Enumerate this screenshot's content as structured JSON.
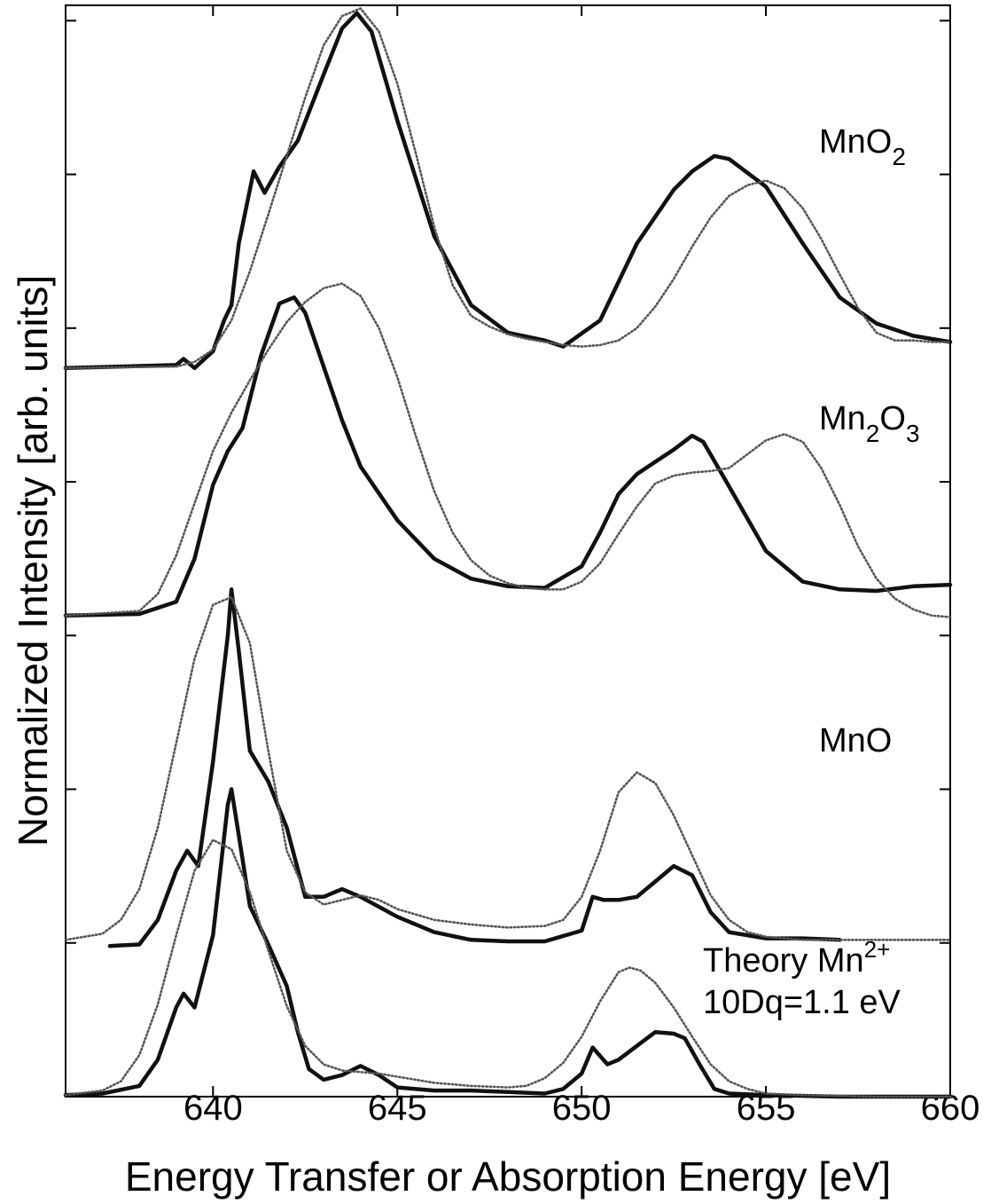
{
  "chart_data": {
    "type": "line",
    "xlabel": "Energy Transfer or Absorption Energy [eV]",
    "ylabel": "Normalized Intensity [arb. units]",
    "xlim": [
      636,
      660
    ],
    "ylim": [
      0,
      7.1
    ],
    "x_ticks": [
      640,
      645,
      650,
      655,
      660
    ],
    "x_tick_labels": [
      "640",
      "645",
      "650",
      "655",
      "660"
    ],
    "y_ticks": [
      1,
      2,
      3,
      4,
      5,
      6,
      7
    ],
    "grid": false,
    "legend": "none",
    "labels": {
      "mno2": {
        "main": "MnO",
        "sub": "2"
      },
      "mn2o3": {
        "main": "Mn",
        "sub1": "2",
        "mid": "O",
        "sub2": "3"
      },
      "mno": {
        "main": "MnO"
      },
      "theory": {
        "line1_prefix": "Theory Mn",
        "line1_sup": "2+",
        "line2": "10Dq=1.1 eV"
      }
    },
    "series": [
      {
        "id": "mno2_solid",
        "style": "solid",
        "x": [
          636,
          639.0,
          639.2,
          639.5,
          640.0,
          640.3,
          640.5,
          640.7,
          641.0,
          641.1,
          641.4,
          641.8,
          642.3,
          643.0,
          643.5,
          643.9,
          644.3,
          645.0,
          646.0,
          647.0,
          648.0,
          649.0,
          649.5,
          650.5,
          651.5,
          652.5,
          653.0,
          653.6,
          654.0,
          655.0,
          656.0,
          657.0,
          658.0,
          659.0,
          660
        ],
        "y": [
          4.74,
          4.76,
          4.8,
          4.74,
          4.85,
          5.05,
          5.15,
          5.55,
          5.9,
          6.02,
          5.88,
          6.05,
          6.22,
          6.65,
          6.95,
          7.05,
          6.93,
          6.35,
          5.6,
          5.15,
          4.97,
          4.92,
          4.88,
          5.05,
          5.55,
          5.9,
          6.02,
          6.12,
          6.1,
          5.92,
          5.55,
          5.2,
          5.03,
          4.95,
          4.91
        ]
      },
      {
        "id": "mno2_dotted",
        "style": "dotted",
        "x": [
          636,
          639.0,
          639.5,
          640.0,
          640.5,
          641.0,
          641.5,
          642.0,
          642.5,
          643.0,
          643.5,
          644.0,
          644.5,
          645.0,
          645.5,
          646.0,
          646.5,
          647.0,
          647.5,
          648.0,
          648.5,
          649.0,
          649.5,
          650.0,
          650.5,
          651.0,
          651.5,
          652.0,
          652.5,
          653.0,
          653.5,
          654.0,
          654.5,
          655.0,
          655.5,
          656.0,
          656.5,
          657.0,
          657.5,
          658.0,
          658.5,
          659.0,
          659.5,
          660
        ],
        "y": [
          4.74,
          4.75,
          4.78,
          4.86,
          5.05,
          5.37,
          5.74,
          6.12,
          6.5,
          6.84,
          7.03,
          7.08,
          6.93,
          6.59,
          6.14,
          5.66,
          5.28,
          5.08,
          5.01,
          4.96,
          4.93,
          4.91,
          4.89,
          4.88,
          4.89,
          4.92,
          5.0,
          5.14,
          5.32,
          5.53,
          5.72,
          5.86,
          5.93,
          5.96,
          5.91,
          5.78,
          5.58,
          5.35,
          5.13,
          4.97,
          4.92,
          4.92,
          4.91,
          4.91
        ]
      },
      {
        "id": "mn2o3_solid",
        "style": "solid",
        "x": [
          636,
          638.0,
          639.0,
          639.5,
          640.0,
          640.4,
          640.8,
          641.3,
          641.8,
          642.2,
          642.5,
          643.0,
          643.5,
          644.0,
          645.0,
          646.0,
          647.0,
          648.0,
          649.0,
          650.0,
          650.5,
          651.0,
          651.5,
          652.0,
          652.5,
          653.0,
          653.3,
          654.0,
          655.0,
          656.0,
          657.0,
          658.0,
          659.0,
          660
        ],
        "y": [
          3.13,
          3.14,
          3.22,
          3.5,
          3.98,
          4.2,
          4.35,
          4.82,
          5.16,
          5.2,
          5.1,
          4.75,
          4.4,
          4.1,
          3.75,
          3.5,
          3.37,
          3.32,
          3.31,
          3.45,
          3.67,
          3.92,
          4.05,
          4.13,
          4.21,
          4.3,
          4.26,
          3.97,
          3.55,
          3.35,
          3.3,
          3.29,
          3.32,
          3.33
        ]
      },
      {
        "id": "mn2o3_dotted",
        "style": "dotted",
        "x": [
          636,
          638.0,
          638.5,
          639.0,
          639.5,
          640.0,
          640.5,
          641.0,
          641.5,
          642.0,
          642.5,
          643.0,
          643.5,
          644.0,
          644.5,
          645.0,
          645.5,
          646.0,
          646.5,
          647.0,
          647.5,
          648.0,
          648.5,
          649.0,
          649.5,
          650.0,
          650.5,
          651.0,
          651.5,
          652.0,
          652.5,
          653.0,
          653.5,
          654.0,
          654.5,
          655.0,
          655.5,
          656.0,
          656.5,
          657.0,
          657.5,
          658.0,
          658.5,
          659.0,
          659.5,
          660
        ],
        "y": [
          3.13,
          3.16,
          3.27,
          3.52,
          3.86,
          4.2,
          4.45,
          4.66,
          4.86,
          5.04,
          5.17,
          5.26,
          5.29,
          5.21,
          5.0,
          4.68,
          4.3,
          3.94,
          3.67,
          3.49,
          3.39,
          3.34,
          3.31,
          3.3,
          3.3,
          3.35,
          3.47,
          3.66,
          3.84,
          3.99,
          4.04,
          4.06,
          4.07,
          4.09,
          4.18,
          4.27,
          4.31,
          4.26,
          4.09,
          3.85,
          3.58,
          3.37,
          3.24,
          3.17,
          3.13,
          3.12
        ]
      },
      {
        "id": "mno_solid",
        "style": "solid",
        "x": [
          637.2,
          638.0,
          638.5,
          639.0,
          639.3,
          639.6,
          640.0,
          640.4,
          640.5,
          640.7,
          641.0,
          641.5,
          642.0,
          642.5,
          643.0,
          643.5,
          644.0,
          645.0,
          646.0,
          647.0,
          648.0,
          649.0,
          650.0,
          650.3,
          650.6,
          651.0,
          651.5,
          652.0,
          652.5,
          653.0,
          653.5,
          654.0,
          655.0,
          656.0,
          657.0
        ],
        "y": [
          0.98,
          0.99,
          1.15,
          1.47,
          1.6,
          1.5,
          2.18,
          3.0,
          3.3,
          2.9,
          2.25,
          2.05,
          1.75,
          1.3,
          1.3,
          1.35,
          1.3,
          1.17,
          1.07,
          1.02,
          1.01,
          1.01,
          1.08,
          1.3,
          1.28,
          1.28,
          1.3,
          1.4,
          1.5,
          1.44,
          1.2,
          1.07,
          1.03,
          1.03,
          1.02
        ]
      },
      {
        "id": "mno_dotted",
        "style": "dotted",
        "x": [
          636,
          637.0,
          637.5,
          638.0,
          638.5,
          639.0,
          639.5,
          640.0,
          640.5,
          641.0,
          641.5,
          642.0,
          642.5,
          643.0,
          643.5,
          644.0,
          644.5,
          645.0,
          646.0,
          647.0,
          648.0,
          649.0,
          649.5,
          650.0,
          650.5,
          651.0,
          651.5,
          652.0,
          652.5,
          653.0,
          653.5,
          654.0,
          654.5,
          655.0,
          656.0,
          657.0,
          658.0,
          659.0,
          660
        ],
        "y": [
          1.02,
          1.06,
          1.15,
          1.35,
          1.75,
          2.3,
          2.85,
          3.2,
          3.25,
          2.95,
          2.25,
          1.6,
          1.33,
          1.25,
          1.28,
          1.31,
          1.28,
          1.22,
          1.15,
          1.12,
          1.1,
          1.11,
          1.15,
          1.3,
          1.6,
          1.98,
          2.11,
          2.04,
          1.83,
          1.57,
          1.31,
          1.15,
          1.07,
          1.04,
          1.02,
          1.02,
          1.02,
          1.02,
          1.02
        ]
      },
      {
        "id": "theory_solid",
        "style": "solid",
        "x": [
          636,
          637.0,
          638.0,
          638.5,
          639.0,
          639.2,
          639.5,
          640.0,
          640.4,
          640.5,
          640.7,
          641.0,
          641.5,
          642.0,
          642.3,
          642.6,
          643.0,
          643.5,
          644.0,
          644.5,
          645.0,
          646.0,
          647.0,
          648.0,
          649.0,
          649.5,
          650.0,
          650.3,
          650.7,
          651.0,
          651.5,
          652.0,
          652.5,
          652.8,
          653.2,
          653.6,
          654.0,
          655.0,
          657.0,
          660
        ],
        "y": [
          0.01,
          0.02,
          0.07,
          0.24,
          0.58,
          0.67,
          0.58,
          1.05,
          1.9,
          2.0,
          1.7,
          1.24,
          0.99,
          0.72,
          0.42,
          0.18,
          0.11,
          0.14,
          0.2,
          0.14,
          0.06,
          0.04,
          0.04,
          0.03,
          0.02,
          0.05,
          0.15,
          0.32,
          0.21,
          0.24,
          0.33,
          0.42,
          0.41,
          0.38,
          0.21,
          0.05,
          0.02,
          0.01,
          0.0,
          0.0
        ]
      },
      {
        "id": "theory_dotted",
        "style": "dotted",
        "x": [
          636,
          637.0,
          637.5,
          638.0,
          638.5,
          639.0,
          639.5,
          640.0,
          640.5,
          641.0,
          641.5,
          642.0,
          642.5,
          643.0,
          643.5,
          644.0,
          644.5,
          645.0,
          646.0,
          647.0,
          648.0,
          648.5,
          649.0,
          649.5,
          650.0,
          650.5,
          651.0,
          651.3,
          651.6,
          652.0,
          652.5,
          653.0,
          653.5,
          654.0,
          654.5,
          655.0,
          656.0,
          658.0,
          660
        ],
        "y": [
          0.01,
          0.04,
          0.1,
          0.27,
          0.6,
          1.05,
          1.47,
          1.67,
          1.61,
          1.33,
          0.95,
          0.59,
          0.33,
          0.21,
          0.17,
          0.16,
          0.15,
          0.13,
          0.09,
          0.07,
          0.06,
          0.07,
          0.12,
          0.22,
          0.39,
          0.62,
          0.81,
          0.84,
          0.82,
          0.74,
          0.58,
          0.39,
          0.21,
          0.1,
          0.05,
          0.02,
          0.01,
          0.0,
          0.0
        ]
      }
    ]
  }
}
